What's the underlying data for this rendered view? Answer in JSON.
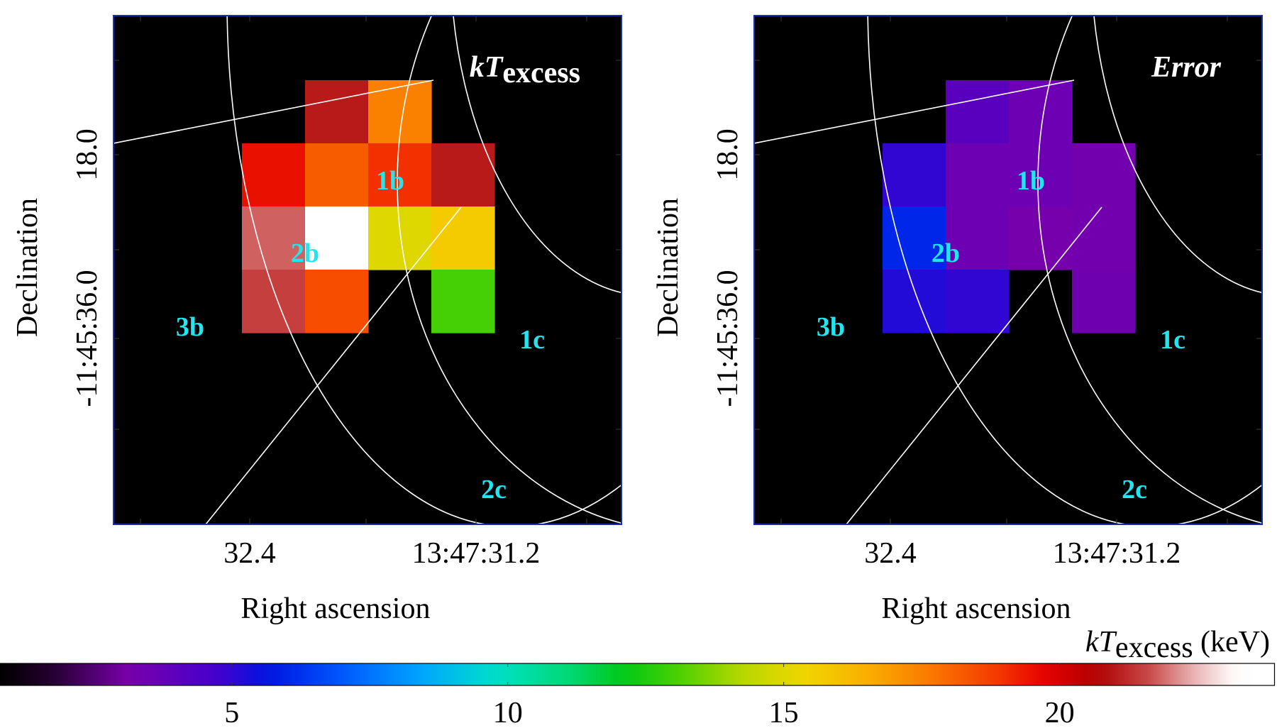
{
  "panels": [
    {
      "label_main": "kT",
      "label_sub": "excess",
      "xlabel": "Right ascension",
      "ylabel": "Declination",
      "xticks": [
        "32.4",
        "13:47:31.2"
      ],
      "yticks": [
        "18.0",
        "-11:45:36.0"
      ],
      "regions": [
        "1b",
        "2b",
        "3b",
        "1c",
        "2c"
      ]
    },
    {
      "label_main": "Error",
      "label_sub": "",
      "xlabel": "Right ascension",
      "ylabel": "Declination",
      "xticks": [
        "32.4",
        "13:47:31.2"
      ],
      "yticks": [
        "18.0",
        "-11:45:36.0"
      ],
      "regions": [
        "1b",
        "2b",
        "3b",
        "1c",
        "2c"
      ]
    }
  ],
  "colorbar": {
    "label_main": "kT",
    "label_sub": "excess",
    "label_unit": " (keV)",
    "ticks": [
      "5",
      "10",
      "15",
      "20"
    ],
    "range": [
      0.8,
      23.9
    ]
  },
  "colors": {
    "panel_bg": "#000000",
    "frame": "#1a2fb0",
    "overlay": "#ffffff",
    "region_label": "#22e5f0"
  },
  "chart_data": [
    {
      "type": "heatmap",
      "title": "kTexcess",
      "xlabel": "Right ascension",
      "ylabel": "Declination",
      "unit": "keV",
      "rows": [
        [
          null,
          21.0,
          17.5,
          null
        ],
        [
          19.5,
          18.2,
          19.0,
          21.0
        ],
        [
          21.8,
          24.0,
          15.0,
          15.7
        ],
        [
          21.5,
          18.5,
          null,
          13.0
        ]
      ]
    },
    {
      "type": "heatmap",
      "title": "Error",
      "xlabel": "Right ascension",
      "ylabel": "Declination",
      "unit": "keV",
      "rows": [
        [
          null,
          4.1,
          3.5,
          null
        ],
        [
          5.0,
          3.5,
          3.5,
          3.3
        ],
        [
          6.0,
          3.5,
          3.2,
          3.3
        ],
        [
          5.2,
          5.0,
          null,
          3.4
        ]
      ]
    }
  ]
}
